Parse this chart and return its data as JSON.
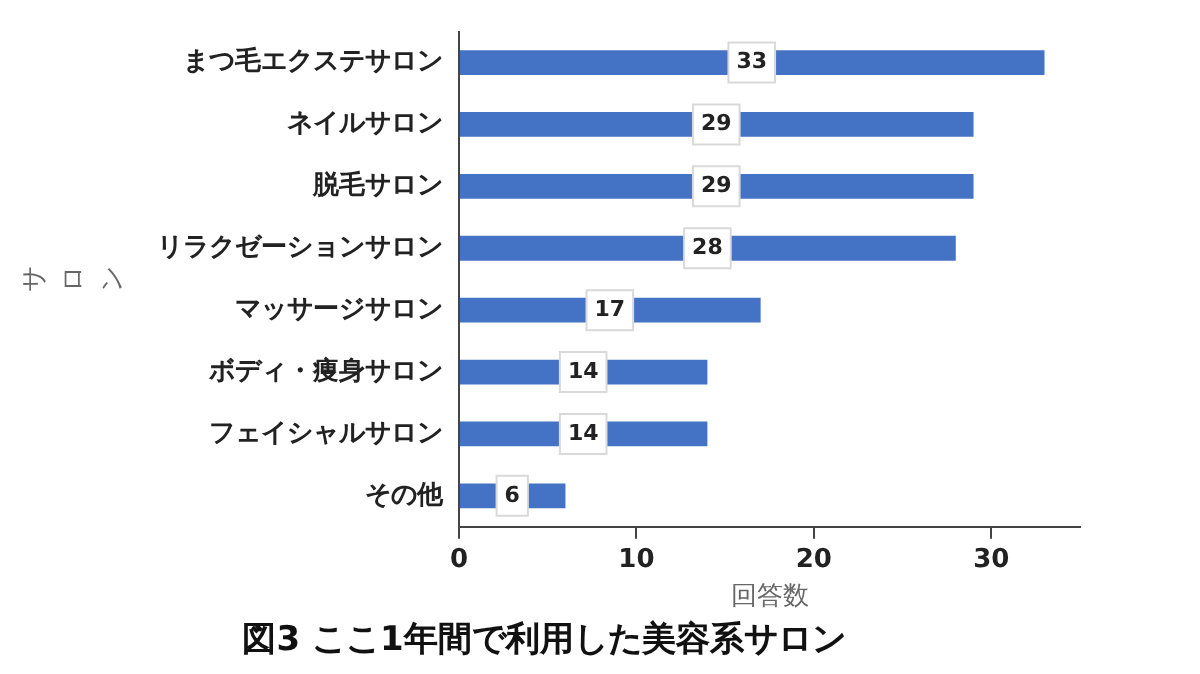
{
  "chart_data": {
    "type": "bar",
    "orientation": "horizontal",
    "title": "図3 ここ1年間で利用した美容系サロン",
    "xlabel": "回答数",
    "ylabel": "サロン",
    "categories": [
      "まつ毛エクステサロン",
      "ネイルサロン",
      "脱毛サロン",
      "リラクゼーションサロン",
      "マッサージサロン",
      "ボディ・痩身サロン",
      "フェイシャルサロン",
      "その他"
    ],
    "values": [
      33,
      29,
      29,
      28,
      17,
      14,
      14,
      6
    ],
    "color": "#4472c4",
    "xlim": [
      0,
      35
    ],
    "xticks": [
      0,
      10,
      20,
      30
    ],
    "grid": false,
    "legend": false,
    "data_labels": true
  }
}
